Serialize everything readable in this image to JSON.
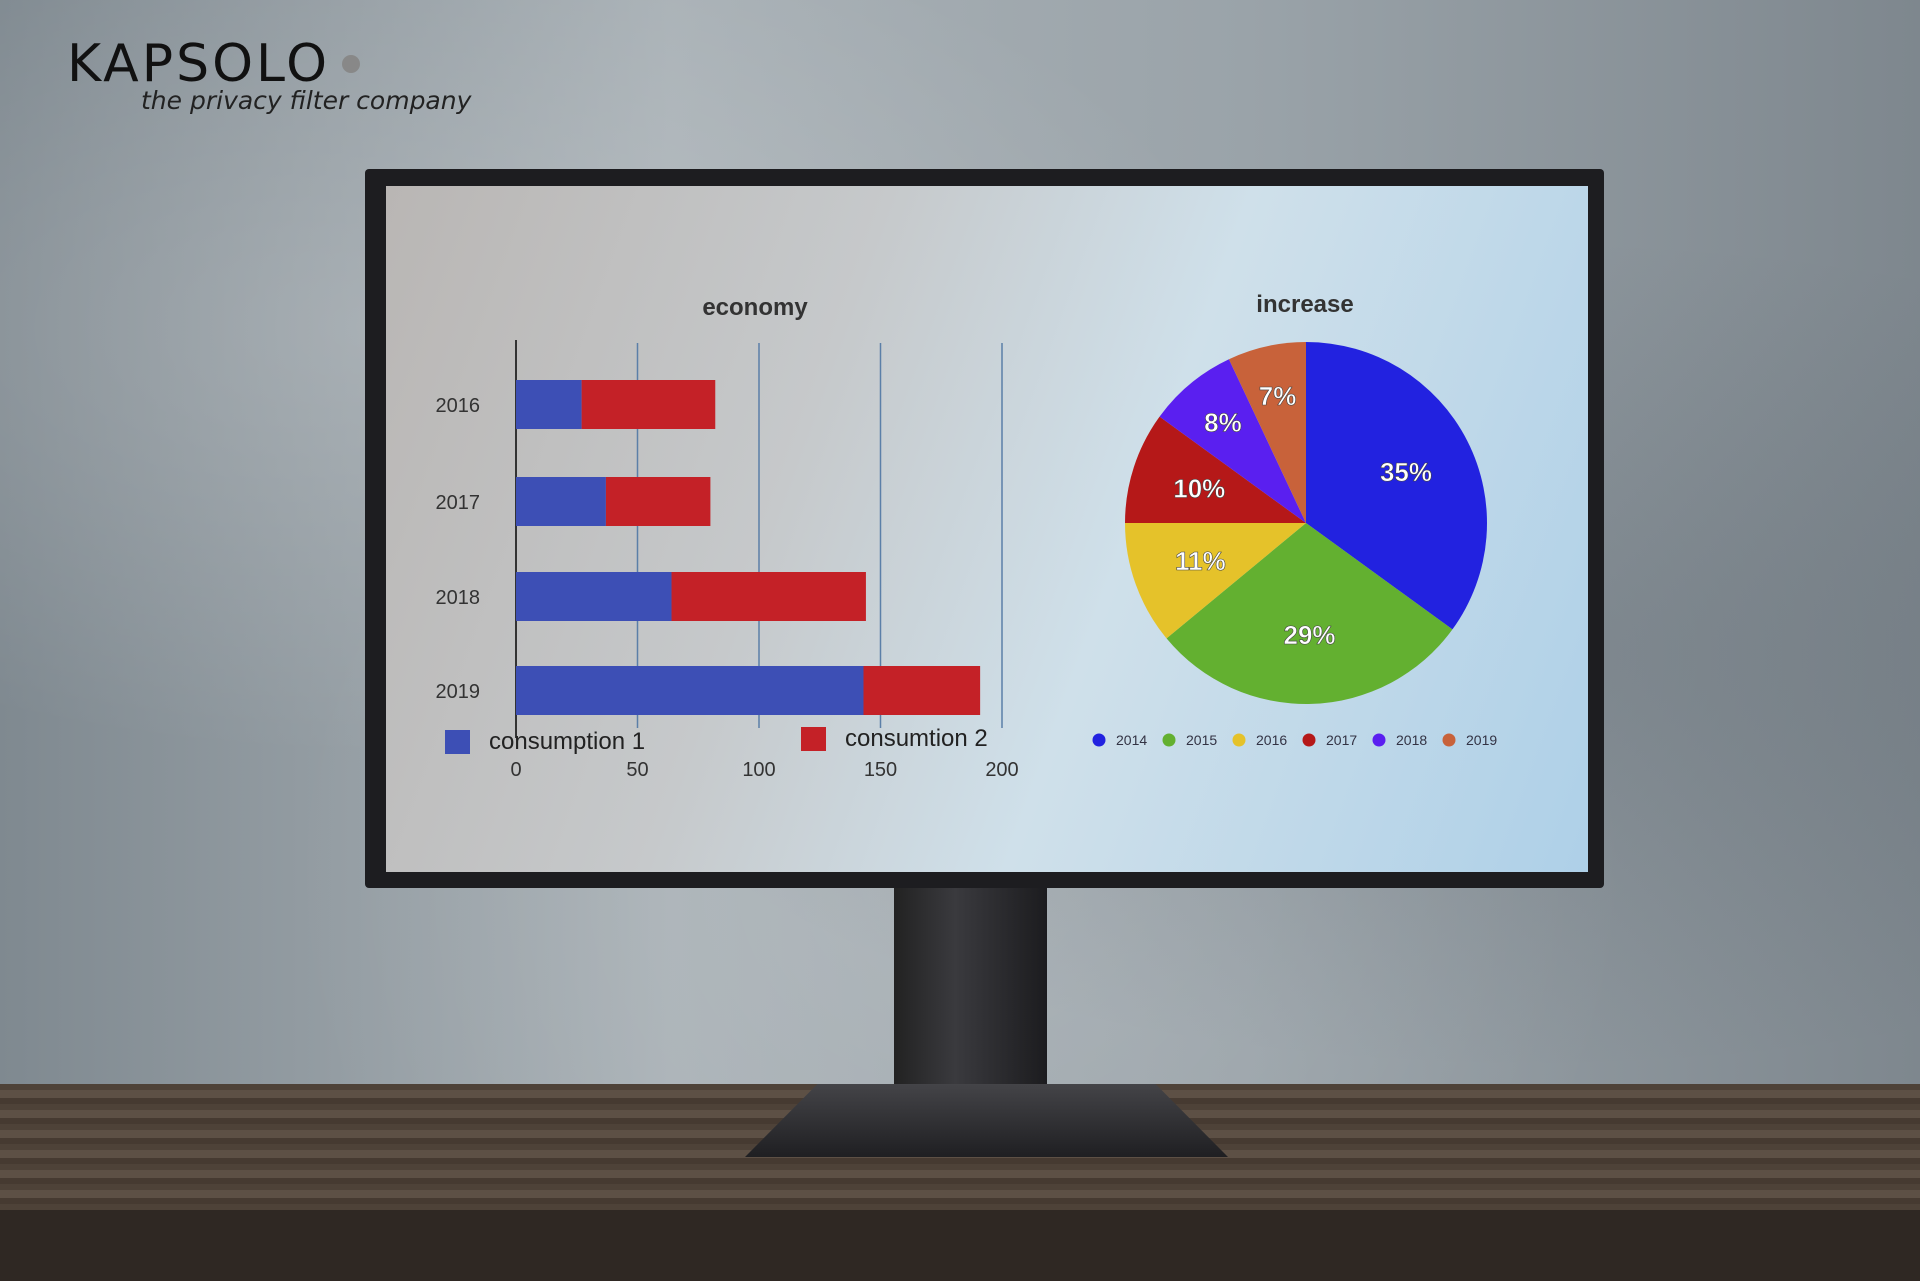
{
  "brand": {
    "name": "KAPSOLO",
    "tagline": "the privacy filter company"
  },
  "chart_data": [
    {
      "type": "bar",
      "orientation": "horizontal",
      "stacked": true,
      "title": "economy",
      "categories": [
        "2016",
        "2017",
        "2018",
        "2019"
      ],
      "series": [
        {
          "name": "consumption  1",
          "color": "#3d4fb5",
          "values": [
            27,
            37,
            64,
            143
          ]
        },
        {
          "name": "consumtion 2",
          "color": "#c42127",
          "values": [
            55,
            43,
            80,
            48
          ]
        }
      ],
      "xlim": [
        0,
        200
      ],
      "xticks": [
        "0",
        "50",
        "100",
        "150",
        "200"
      ],
      "grid": true,
      "legend": "bottom"
    },
    {
      "type": "pie",
      "title": "increase",
      "categories": [
        "2014",
        "2015",
        "2016",
        "2017",
        "2018",
        "2019"
      ],
      "values": [
        35,
        29,
        11,
        10,
        8,
        7
      ],
      "labels": [
        "35%",
        "29%",
        "11%",
        "10%",
        "8%",
        "7%"
      ],
      "colors": [
        "#2222e0",
        "#63b030",
        "#e5c22a",
        "#b51818",
        "#5a1ff0",
        "#c8623a"
      ],
      "legend": "bottom"
    }
  ]
}
